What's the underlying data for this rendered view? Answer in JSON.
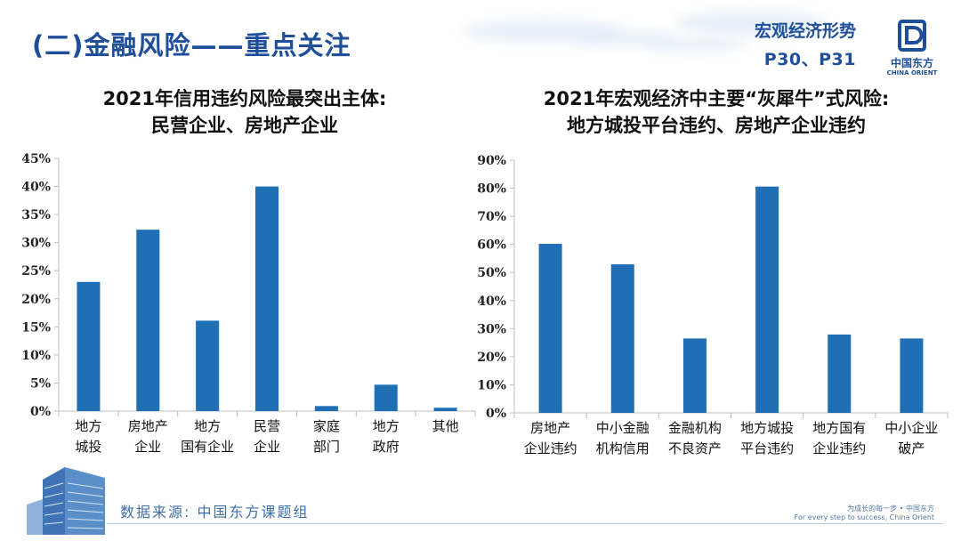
{
  "header": {
    "section_title": "(二)金融风险——重点关注",
    "ref_line1": "宏观经济形势",
    "ref_line2": "P30、P31"
  },
  "logo": {
    "name": "中国东方",
    "name_en": "CHINA ORIENT"
  },
  "footer": {
    "source": "数据来源: 中国东方课题组",
    "slogan_line1": "为成长的每一步 • 中国东方",
    "slogan_line2": "For every step to success, China Orient"
  },
  "colors": {
    "brand": "#1f4e9a",
    "bar": "#1f6fb4",
    "axis": "#bfbfbf"
  },
  "chart_data": [
    {
      "type": "bar",
      "title_line1": "2021年信用违约风险最突出主体:",
      "title_line2": "民营企业、房地产企业",
      "categories": [
        [
          "地方",
          "城投"
        ],
        [
          "房地产",
          "企业"
        ],
        [
          "地方",
          "国有企业"
        ],
        [
          "民营",
          "企业"
        ],
        [
          "家庭",
          "部门"
        ],
        [
          "地方",
          "政府"
        ],
        [
          "其他"
        ]
      ],
      "values": [
        23,
        32.3,
        16.1,
        40,
        0.9,
        4.7,
        0.6
      ],
      "ylim": [
        0,
        45
      ],
      "yticks": [
        "0%",
        "5%",
        "10%",
        "15%",
        "20%",
        "25%",
        "30%",
        "35%",
        "40%",
        "45%"
      ],
      "ytick_values": [
        0,
        5,
        10,
        15,
        20,
        25,
        30,
        35,
        40,
        45
      ],
      "xlabel": "",
      "ylabel": ""
    },
    {
      "type": "bar",
      "title_line1": "2021年宏观经济中主要“灰犀牛”式风险:",
      "title_line2": "地方城投平台违约、房地产企业违约",
      "categories": [
        [
          "房地产",
          "企业违约"
        ],
        [
          "中小金融",
          "机构信用"
        ],
        [
          "金融机构",
          "不良资产"
        ],
        [
          "地方城投",
          "平台违约"
        ],
        [
          "地方国有",
          "企业违约"
        ],
        [
          "中小企业",
          "破产"
        ]
      ],
      "values": [
        60.2,
        52.9,
        26.5,
        80.6,
        27.9,
        26.5
      ],
      "ylim": [
        0,
        90
      ],
      "yticks": [
        "0%",
        "10%",
        "20%",
        "30%",
        "40%",
        "50%",
        "60%",
        "70%",
        "80%",
        "90%"
      ],
      "ytick_values": [
        0,
        10,
        20,
        30,
        40,
        50,
        60,
        70,
        80,
        90
      ],
      "xlabel": "",
      "ylabel": ""
    }
  ]
}
